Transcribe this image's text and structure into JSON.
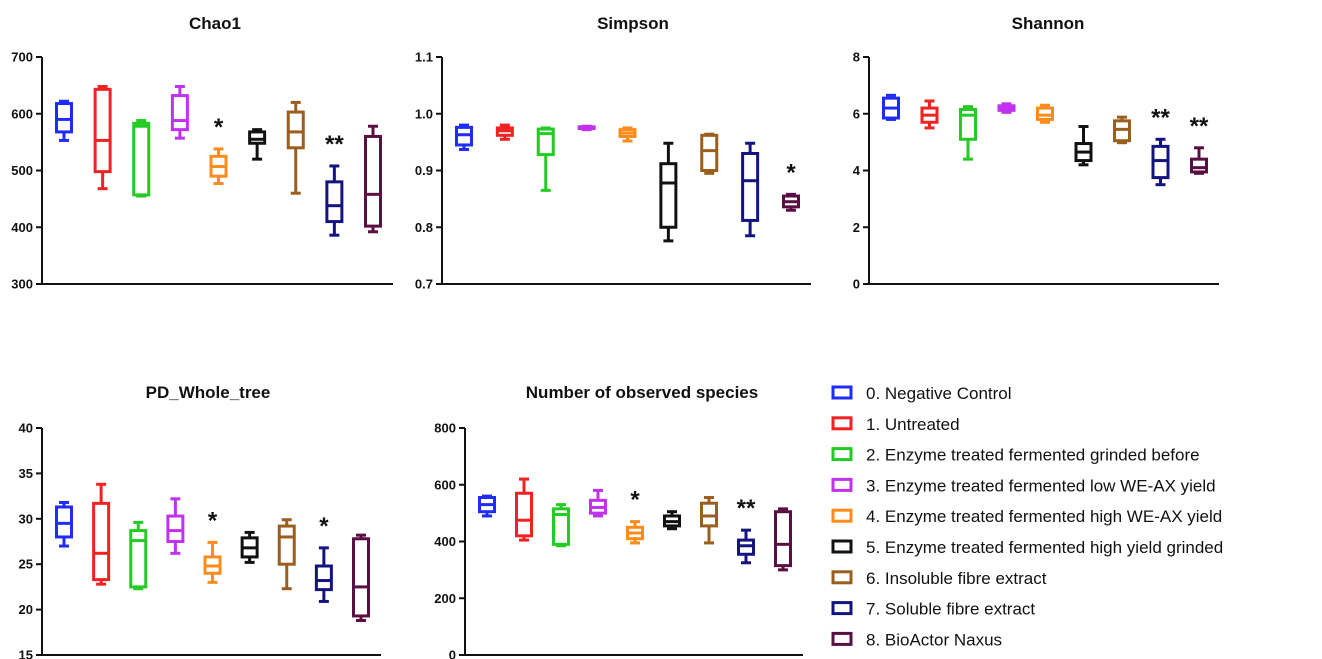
{
  "groups": [
    {
      "name": "0. Negative Control",
      "color": "#1f2cf5"
    },
    {
      "name": "1. Untreated",
      "color": "#f02222"
    },
    {
      "name": "2. Enzyme treated fermented grinded before",
      "color": "#22cc22"
    },
    {
      "name": "3. Enzyme treated fermented low WE-AX yield",
      "color": "#c230f0"
    },
    {
      "name": "4. Enzyme treated fermented high WE-AX yield",
      "color": "#ff8c1a"
    },
    {
      "name": "5. Enzyme treated fermented high yield grinded",
      "color": "#111111"
    },
    {
      "name": "6. Insoluble fibre extract",
      "color": "#9a5e1e"
    },
    {
      "name": "7. Soluble fibre extract",
      "color": "#141480"
    },
    {
      "name": "8. BioActor Naxus",
      "color": "#5a0f42"
    }
  ],
  "chart_data": [
    {
      "type": "box",
      "title": "Chao1",
      "ylim": [
        300,
        700
      ],
      "yticks": [
        300,
        400,
        500,
        600,
        700
      ],
      "boxes": [
        {
          "min": 553,
          "q1": 568,
          "median": 590,
          "q3": 618,
          "max": 622
        },
        {
          "min": 468,
          "q1": 498,
          "median": 553,
          "q3": 643,
          "max": 648
        },
        {
          "min": 455,
          "q1": 457,
          "median": 578,
          "q3": 583,
          "max": 588
        },
        {
          "min": 557,
          "q1": 572,
          "median": 588,
          "q3": 632,
          "max": 648
        },
        {
          "min": 477,
          "q1": 490,
          "median": 507,
          "q3": 525,
          "max": 538
        },
        {
          "min": 520,
          "q1": 548,
          "median": 555,
          "q3": 568,
          "max": 572
        },
        {
          "min": 460,
          "q1": 540,
          "median": 568,
          "q3": 603,
          "max": 620
        },
        {
          "min": 386,
          "q1": 410,
          "median": 438,
          "q3": 480,
          "max": 508
        },
        {
          "min": 392,
          "q1": 402,
          "median": 458,
          "q3": 560,
          "max": 578
        }
      ],
      "annotations": [
        "",
        "",
        "",
        "",
        "*",
        "",
        "",
        "**",
        ""
      ]
    },
    {
      "type": "box",
      "title": "Simpson",
      "ylim": [
        0.7,
        1.1
      ],
      "yticks": [
        0.7,
        0.8,
        0.9,
        1.0,
        1.1
      ],
      "ytick_labels": [
        "0.7",
        "0.8",
        "0.9",
        "1.0",
        "1.1"
      ],
      "boxes": [
        {
          "min": 0.937,
          "q1": 0.945,
          "median": 0.963,
          "q3": 0.976,
          "max": 0.98
        },
        {
          "min": 0.955,
          "q1": 0.962,
          "median": 0.97,
          "q3": 0.975,
          "max": 0.98
        },
        {
          "min": 0.865,
          "q1": 0.928,
          "median": 0.965,
          "q3": 0.973,
          "max": 0.975
        },
        {
          "min": 0.972,
          "q1": 0.974,
          "median": 0.976,
          "q3": 0.977,
          "max": 0.978
        },
        {
          "min": 0.952,
          "q1": 0.96,
          "median": 0.966,
          "q3": 0.972,
          "max": 0.975
        },
        {
          "min": 0.776,
          "q1": 0.8,
          "median": 0.878,
          "q3": 0.912,
          "max": 0.948
        },
        {
          "min": 0.895,
          "q1": 0.9,
          "median": 0.935,
          "q3": 0.962,
          "max": 0.964
        },
        {
          "min": 0.785,
          "q1": 0.812,
          "median": 0.882,
          "q3": 0.93,
          "max": 0.948
        },
        {
          "min": 0.83,
          "q1": 0.836,
          "median": 0.845,
          "q3": 0.855,
          "max": 0.858
        }
      ],
      "annotations": [
        "",
        "",
        "",
        "",
        "",
        "",
        "",
        "",
        "*"
      ]
    },
    {
      "type": "box",
      "title": "Shannon",
      "ylim": [
        0,
        8
      ],
      "yticks": [
        0,
        2,
        4,
        6,
        8
      ],
      "boxes": [
        {
          "min": 5.8,
          "q1": 5.85,
          "median": 6.2,
          "q3": 6.55,
          "max": 6.65
        },
        {
          "min": 5.5,
          "q1": 5.7,
          "median": 5.95,
          "q3": 6.2,
          "max": 6.45
        },
        {
          "min": 4.4,
          "q1": 5.1,
          "median": 5.95,
          "q3": 6.15,
          "max": 6.25
        },
        {
          "min": 6.05,
          "q1": 6.12,
          "median": 6.2,
          "q3": 6.28,
          "max": 6.35
        },
        {
          "min": 5.7,
          "q1": 5.8,
          "median": 5.95,
          "q3": 6.2,
          "max": 6.3
        },
        {
          "min": 4.2,
          "q1": 4.35,
          "median": 4.65,
          "q3": 4.95,
          "max": 5.55
        },
        {
          "min": 4.98,
          "q1": 5.05,
          "median": 5.45,
          "q3": 5.75,
          "max": 5.88
        },
        {
          "min": 3.5,
          "q1": 3.75,
          "median": 4.35,
          "q3": 4.85,
          "max": 5.1
        },
        {
          "min": 3.9,
          "q1": 3.95,
          "median": 4.1,
          "q3": 4.4,
          "max": 4.8
        }
      ],
      "annotations": [
        "",
        "",
        "",
        "",
        "",
        "",
        "",
        "**",
        "**"
      ]
    },
    {
      "type": "box",
      "title": "PD_Whole_tree",
      "ylim": [
        15,
        40
      ],
      "yticks": [
        15,
        20,
        25,
        30,
        35,
        40
      ],
      "boxes": [
        {
          "min": 27,
          "q1": 28,
          "median": 29.5,
          "q3": 31.3,
          "max": 31.8
        },
        {
          "min": 22.8,
          "q1": 23.3,
          "median": 26.2,
          "q3": 31.7,
          "max": 33.8
        },
        {
          "min": 22.3,
          "q1": 22.5,
          "median": 27.6,
          "q3": 28.7,
          "max": 29.6
        },
        {
          "min": 26.2,
          "q1": 27.5,
          "median": 28.7,
          "q3": 30.3,
          "max": 32.2
        },
        {
          "min": 23,
          "q1": 24,
          "median": 24.8,
          "q3": 25.8,
          "max": 27.4
        },
        {
          "min": 25.2,
          "q1": 25.8,
          "median": 26.8,
          "q3": 27.9,
          "max": 28.5
        },
        {
          "min": 22.3,
          "q1": 25,
          "median": 28,
          "q3": 29.2,
          "max": 29.9
        },
        {
          "min": 20.9,
          "q1": 22.2,
          "median": 23.2,
          "q3": 24.8,
          "max": 26.8
        },
        {
          "min": 18.8,
          "q1": 19.3,
          "median": 22.5,
          "q3": 27.8,
          "max": 28.2
        }
      ],
      "annotations": [
        "",
        "",
        "",
        "",
        "*",
        "",
        "",
        "*",
        ""
      ]
    },
    {
      "type": "box",
      "title": "Number of observed species",
      "ylim": [
        0,
        800
      ],
      "yticks": [
        0,
        200,
        400,
        600,
        800
      ],
      "boxes": [
        {
          "min": 490,
          "q1": 505,
          "median": 530,
          "q3": 555,
          "max": 560
        },
        {
          "min": 405,
          "q1": 420,
          "median": 475,
          "q3": 570,
          "max": 620
        },
        {
          "min": 385,
          "q1": 390,
          "median": 495,
          "q3": 515,
          "max": 530
        },
        {
          "min": 490,
          "q1": 500,
          "median": 520,
          "q3": 545,
          "max": 580
        },
        {
          "min": 395,
          "q1": 410,
          "median": 430,
          "q3": 450,
          "max": 470
        },
        {
          "min": 445,
          "q1": 455,
          "median": 470,
          "q3": 490,
          "max": 505
        },
        {
          "min": 395,
          "q1": 455,
          "median": 490,
          "q3": 535,
          "max": 555
        },
        {
          "min": 325,
          "q1": 355,
          "median": 385,
          "q3": 405,
          "max": 440
        },
        {
          "min": 300,
          "q1": 315,
          "median": 390,
          "q3": 505,
          "max": 515
        }
      ],
      "annotations": [
        "",
        "",
        "",
        "",
        "*",
        "",
        "",
        "**",
        ""
      ]
    }
  ]
}
